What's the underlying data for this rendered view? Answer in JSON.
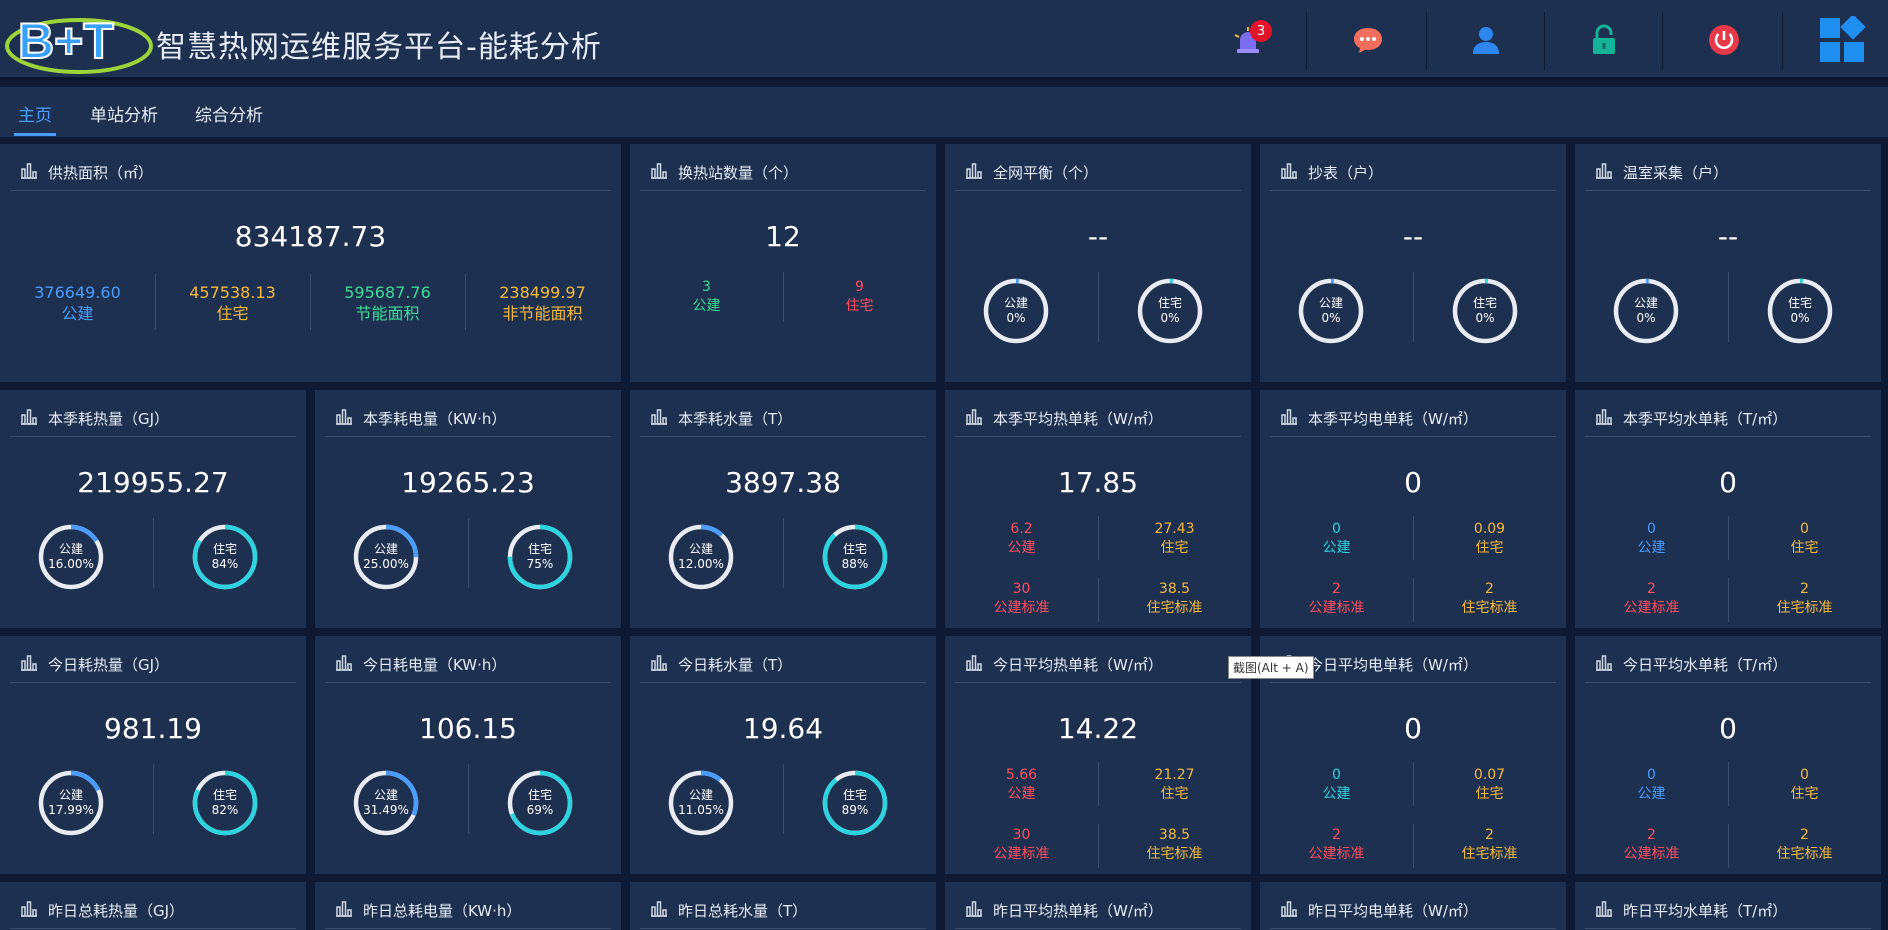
{
  "header": {
    "logo_text": "B+T",
    "title": "智慧热网运维服务平台-能耗分析",
    "alarm_count": "3",
    "icons": [
      "alarm-icon",
      "message-icon",
      "user-icon",
      "lock-icon",
      "power-icon",
      "apps-icon"
    ]
  },
  "nav": {
    "tabs": [
      {
        "label": "主页",
        "active": true
      },
      {
        "label": "单站分析",
        "active": false
      },
      {
        "label": "综合分析",
        "active": false
      }
    ]
  },
  "tooltip": "截图(Alt + A)",
  "row1": {
    "area": {
      "title": "供热面积（㎡）",
      "value": "834187.73",
      "items": [
        {
          "value": "376649.60",
          "label": "公建"
        },
        {
          "value": "457538.13",
          "label": "住宅"
        },
        {
          "value": "595687.76",
          "label": "节能面积"
        },
        {
          "value": "238499.97",
          "label": "非节能面积"
        }
      ]
    },
    "stations": {
      "title": "换热站数量（个）",
      "value": "12",
      "items": [
        {
          "value": "3",
          "label": "公建"
        },
        {
          "value": "9",
          "label": "住宅"
        }
      ]
    },
    "rings3": [
      {
        "title": "全网平衡（个）",
        "value": "--",
        "r1_label": "公建",
        "r1_pct": "0%",
        "r2_label": "住宅",
        "r2_pct": "0%"
      },
      {
        "title": "抄表（户）",
        "value": "--",
        "r1_label": "公建",
        "r1_pct": "0%",
        "r2_label": "住宅",
        "r2_pct": "0%"
      },
      {
        "title": "温室采集（户）",
        "value": "--",
        "r1_label": "公建",
        "r1_pct": "0%",
        "r2_label": "住宅",
        "r2_pct": "0%"
      }
    ]
  },
  "row2": {
    "rings": [
      {
        "title": "本季耗热量（GJ）",
        "value": "219955.27",
        "r1_label": "公建",
        "r1_pct": "16.00%",
        "r1_frac": 0.16,
        "r2_label": "住宅",
        "r2_pct": "84%",
        "r2_frac": 0.84
      },
      {
        "title": "本季耗电量（KW·h）",
        "value": "19265.23",
        "r1_label": "公建",
        "r1_pct": "25.00%",
        "r1_frac": 0.25,
        "r2_label": "住宅",
        "r2_pct": "75%",
        "r2_frac": 0.75
      },
      {
        "title": "本季耗水量（T）",
        "value": "3897.38",
        "r1_label": "公建",
        "r1_pct": "12.00%",
        "r1_frac": 0.12,
        "r2_label": "住宅",
        "r2_pct": "88%",
        "r2_frac": 0.88
      }
    ],
    "grids": [
      {
        "title": "本季平均热单耗（W/㎡）",
        "value": "17.85",
        "cells": [
          {
            "value": "6.2",
            "label": "公建"
          },
          {
            "value": "27.43",
            "label": "住宅"
          },
          {
            "value": "30",
            "label": "公建标准"
          },
          {
            "value": "38.5",
            "label": "住宅标准"
          }
        ]
      },
      {
        "title": "本季平均电单耗（W/㎡）",
        "value": "0",
        "cells": [
          {
            "value": "0",
            "label": "公建"
          },
          {
            "value": "0.09",
            "label": "住宅"
          },
          {
            "value": "2",
            "label": "公建标准"
          },
          {
            "value": "2",
            "label": "住宅标准"
          }
        ]
      },
      {
        "title": "本季平均水单耗（T/㎡）",
        "value": "0",
        "cells": [
          {
            "value": "0",
            "label": "公建"
          },
          {
            "value": "0",
            "label": "住宅"
          },
          {
            "value": "2",
            "label": "公建标准"
          },
          {
            "value": "2",
            "label": "住宅标准"
          }
        ]
      }
    ]
  },
  "row3": {
    "rings": [
      {
        "title": "今日耗热量（GJ）",
        "value": "981.19",
        "r1_label": "公建",
        "r1_pct": "17.99%",
        "r1_frac": 0.1799,
        "r2_label": "住宅",
        "r2_pct": "82%",
        "r2_frac": 0.82
      },
      {
        "title": "今日耗电量（KW·h）",
        "value": "106.15",
        "r1_label": "公建",
        "r1_pct": "31.49%",
        "r1_frac": 0.3149,
        "r2_label": "住宅",
        "r2_pct": "69%",
        "r2_frac": 0.69
      },
      {
        "title": "今日耗水量（T）",
        "value": "19.64",
        "r1_label": "公建",
        "r1_pct": "11.05%",
        "r1_frac": 0.1105,
        "r2_label": "住宅",
        "r2_pct": "89%",
        "r2_frac": 0.89
      }
    ],
    "grids": [
      {
        "title": "今日平均热单耗（W/㎡）",
        "value": "14.22",
        "cells": [
          {
            "value": "5.66",
            "label": "公建"
          },
          {
            "value": "21.27",
            "label": "住宅"
          },
          {
            "value": "30",
            "label": "公建标准"
          },
          {
            "value": "38.5",
            "label": "住宅标准"
          }
        ]
      },
      {
        "title": "今日平均电单耗（W/㎡）",
        "value": "0",
        "cells": [
          {
            "value": "0",
            "label": "公建"
          },
          {
            "value": "0.07",
            "label": "住宅"
          },
          {
            "value": "2",
            "label": "公建标准"
          },
          {
            "value": "2",
            "label": "住宅标准"
          }
        ]
      },
      {
        "title": "今日平均水单耗（T/㎡）",
        "value": "0",
        "cells": [
          {
            "value": "0",
            "label": "公建"
          },
          {
            "value": "0",
            "label": "住宅"
          },
          {
            "value": "2",
            "label": "公建标准"
          },
          {
            "value": "2",
            "label": "住宅标准"
          }
        ]
      }
    ]
  },
  "row4": {
    "titles": [
      "昨日总耗热量（GJ）",
      "昨日总耗电量（KW·h）",
      "昨日总耗水量（T）",
      "昨日平均热单耗（W/㎡）",
      "昨日平均电单耗（W/㎡）",
      "昨日平均水单耗（T/㎡）"
    ]
  },
  "colors": {
    "background": "#0e1a33",
    "panel": "#1d3050",
    "accent_blue": "#4a9cff",
    "yellow": "#f5b93b",
    "green": "#3ddc97",
    "red": "#ff4d5e",
    "teal": "#2dd4e0",
    "ring_track": "#e8ecf2"
  }
}
